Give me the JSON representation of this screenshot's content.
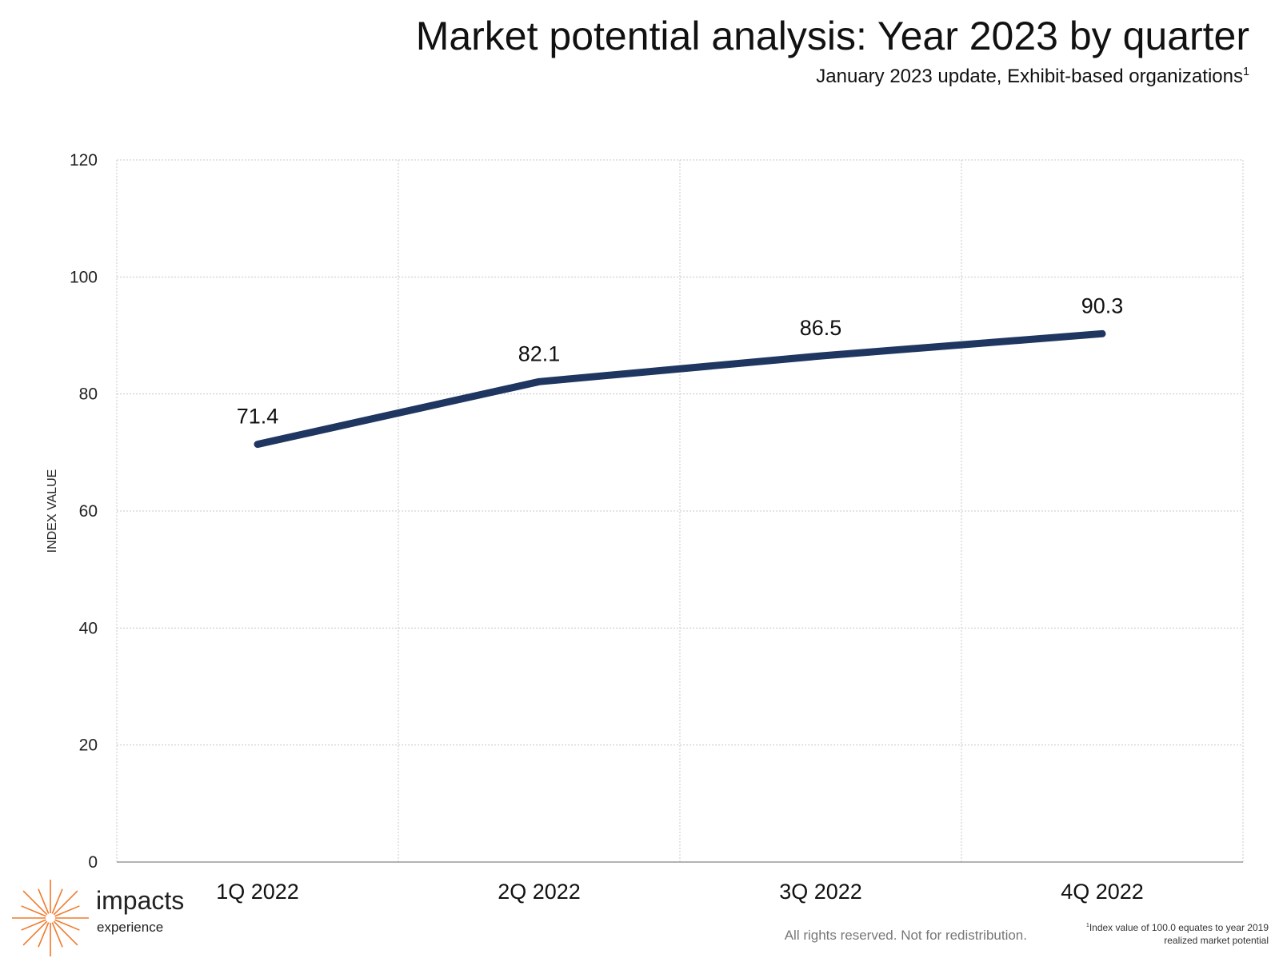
{
  "header": {
    "title": "Market potential analysis: Year 2023 by quarter",
    "subtitle": "January 2023 update, Exhibit-based organizations",
    "subtitle_marker": "1"
  },
  "chart_data": {
    "type": "line",
    "title": "Market potential analysis: Year 2023 by quarter",
    "subtitle": "January 2023 update, Exhibit-based organizations",
    "categories": [
      "1Q 2022",
      "2Q 2022",
      "3Q 2022",
      "4Q 2022"
    ],
    "series": [
      {
        "values": [
          71.4,
          82.1,
          86.5,
          90.3
        ],
        "color": "#1f3660"
      }
    ],
    "data_labels": [
      "71.4",
      "82.1",
      "86.5",
      "90.3"
    ],
    "xlabel": "",
    "ylabel": "INDEX VALUE",
    "ylim": [
      0,
      120
    ],
    "yticks": [
      0,
      20,
      40,
      60,
      80,
      100,
      120
    ],
    "grid": true,
    "legend": "none"
  },
  "footer": {
    "logo_name": "impacts",
    "logo_sub": "experience",
    "logo_color": "#f07a2c",
    "rights": "All rights reserved. Not for redistribution.",
    "footnote_marker": "1",
    "footnote_text": "Index value of 100.0 equates to year 2019 realized market potential"
  }
}
